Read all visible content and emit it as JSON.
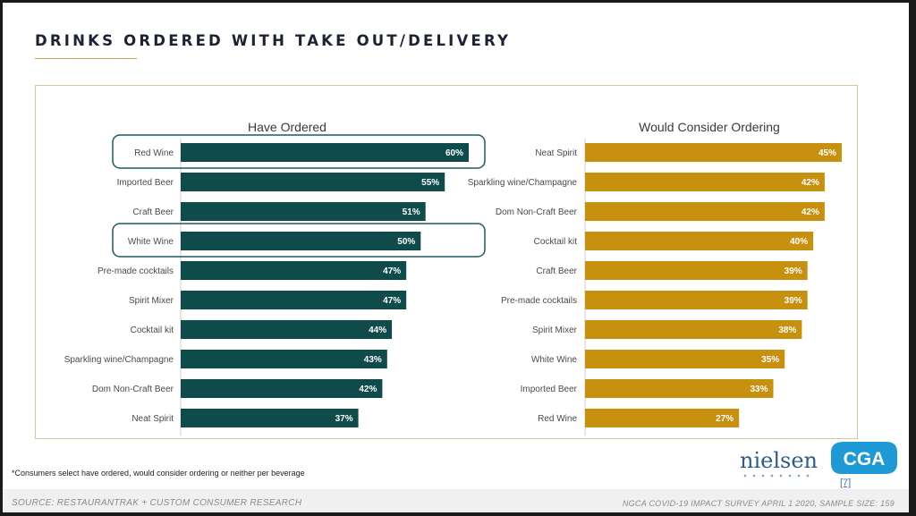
{
  "page": {
    "title": "DRINKS ORDERED WITH TAKE OUT/DELIVERY"
  },
  "chart_data": [
    {
      "type": "bar",
      "orientation": "horizontal",
      "title": "Have Ordered",
      "color": "#0f4b4b",
      "categories": [
        "Red Wine",
        "Imported Beer",
        "Craft Beer",
        "White Wine",
        "Pre-made cocktails",
        "Spirit Mixer",
        "Cocktail kit",
        "Sparkling wine/Champagne",
        "Dom Non-Craft Beer",
        "Neat Spirit"
      ],
      "values": [
        60,
        55,
        51,
        50,
        47,
        47,
        44,
        43,
        42,
        37
      ],
      "labels": [
        "60%",
        "55%",
        "51%",
        "50%",
        "47%",
        "47%",
        "44%",
        "43%",
        "42%",
        "37%"
      ],
      "highlighted": [
        "Red Wine",
        "White Wine"
      ],
      "xlim": [
        0,
        60
      ]
    },
    {
      "type": "bar",
      "orientation": "horizontal",
      "title": "Would Consider Ordering",
      "color": "#c8900f",
      "categories": [
        "Neat Spirit",
        "Sparkling wine/Champagne",
        "Dom Non-Craft Beer",
        "Cocktail kit",
        "Craft Beer",
        "Pre-made cocktails",
        "Spirit Mixer",
        "White Wine",
        "Imported Beer",
        "Red Wine"
      ],
      "values": [
        45,
        42,
        42,
        40,
        39,
        39,
        38,
        35,
        33,
        27
      ],
      "labels": [
        "45%",
        "42%",
        "42%",
        "40%",
        "39%",
        "39%",
        "38%",
        "35%",
        "33%",
        "27%"
      ],
      "xlim": [
        0,
        45
      ]
    }
  ],
  "footnote": "*Consumers select have ordered, would consider ordering or neither per beverage",
  "logos": {
    "nielsen": "nielsen",
    "cga": "CGA"
  },
  "slide_number": "[7]",
  "footer": {
    "source": "SOURCE: RESTAURANTRAK + CUSTOM CONSUMER RESEARCH",
    "survey": "NGCA COVID-19 IMPACT SURVEY APRIL 1 2020, SAMPLE SIZE: 159"
  }
}
